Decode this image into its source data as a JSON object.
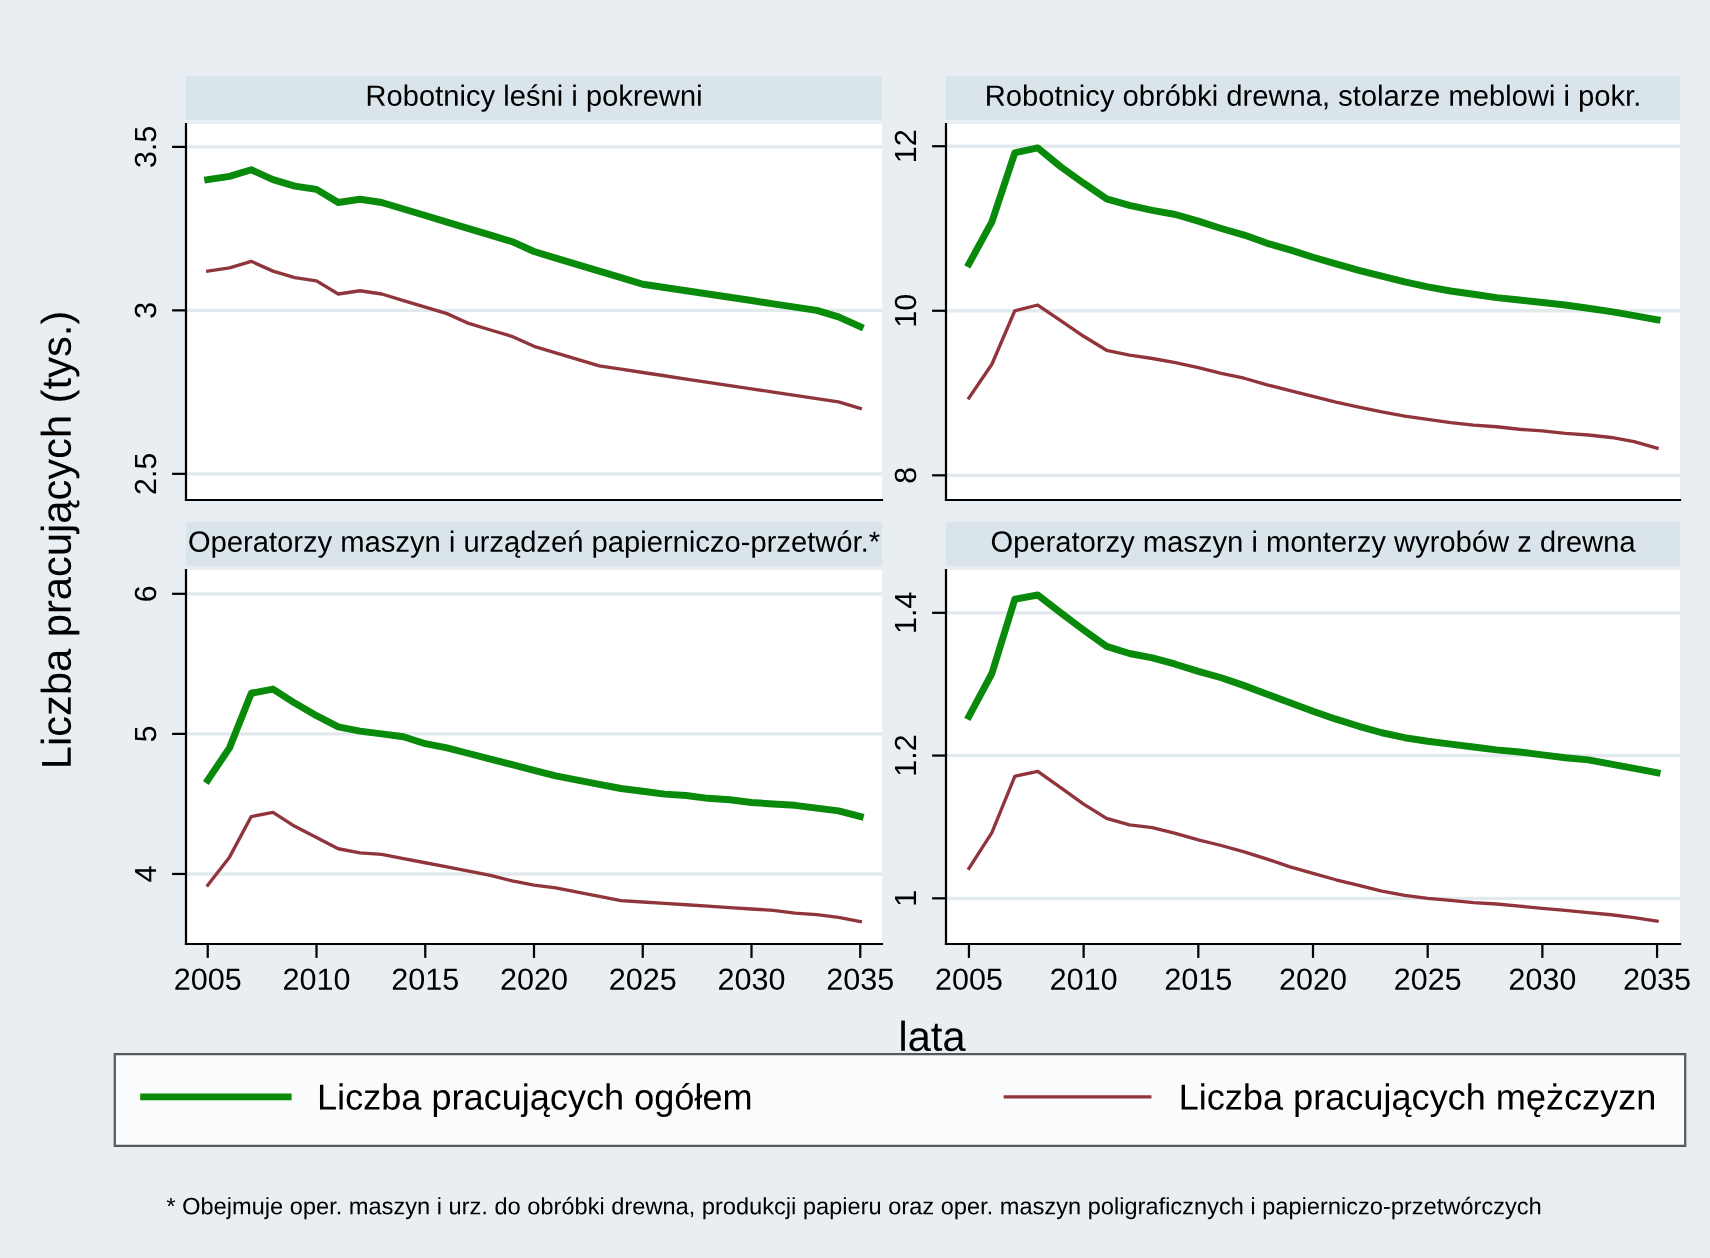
{
  "chart_data": [
    {
      "type": "line",
      "title": "Robotnicy leśni i pokrewni",
      "ylabel": "Liczba pracujących (tys.)",
      "xlabel": "lata",
      "legend": "bottom",
      "grid": "y",
      "tick_labels": "y",
      "annotations": [
        "* Obejmuje oper. maszyn i urz. do obróbki drewna, produkcji papieru oraz oper. maszyn poligraficznych i papierniczo-przetwórczych"
      ],
      "x": [
        2005,
        2006,
        2007,
        2008,
        2009,
        2010,
        2011,
        2012,
        2013,
        2014,
        2015,
        2016,
        2017,
        2018,
        2019,
        2020,
        2021,
        2022,
        2023,
        2024,
        2025,
        2026,
        2027,
        2028,
        2029,
        2030,
        2031,
        2032,
        2033,
        2034,
        2035
      ],
      "xlim": [
        2004,
        2036
      ],
      "xticks": [
        2005,
        2010,
        2015,
        2020,
        2025,
        2030,
        2035
      ],
      "ylim": [
        2.42,
        3.57
      ],
      "yticks": [
        2.5,
        3,
        3.5
      ],
      "series": [
        {
          "name": "Liczba pracujących ogółem",
          "color": "#0a8a0a",
          "values": [
            3.4,
            3.41,
            3.43,
            3.4,
            3.38,
            3.37,
            3.33,
            3.34,
            3.33,
            3.31,
            3.29,
            3.27,
            3.25,
            3.23,
            3.21,
            3.18,
            3.16,
            3.14,
            3.12,
            3.1,
            3.08,
            3.07,
            3.06,
            3.05,
            3.04,
            3.03,
            3.02,
            3.01,
            3.0,
            2.98,
            2.95
          ]
        },
        {
          "name": "Liczba pracujących mężczyzn",
          "color": "#90353b",
          "values": [
            3.12,
            3.13,
            3.15,
            3.12,
            3.1,
            3.09,
            3.05,
            3.06,
            3.05,
            3.03,
            3.01,
            2.99,
            2.96,
            2.94,
            2.92,
            2.89,
            2.87,
            2.85,
            2.83,
            2.82,
            2.81,
            2.8,
            2.79,
            2.78,
            2.77,
            2.76,
            2.75,
            2.74,
            2.73,
            2.72,
            2.7
          ]
        }
      ]
    },
    {
      "type": "line",
      "title": "Robotnicy obróbki drewna, stolarze meblowi i pokr.",
      "grid": "y",
      "tick_labels": "y",
      "x": [
        2005,
        2006,
        2007,
        2008,
        2009,
        2010,
        2011,
        2012,
        2013,
        2014,
        2015,
        2016,
        2017,
        2018,
        2019,
        2020,
        2021,
        2022,
        2023,
        2024,
        2025,
        2026,
        2027,
        2028,
        2029,
        2030,
        2031,
        2032,
        2033,
        2034,
        2035
      ],
      "xlim": [
        2004,
        2036
      ],
      "xticks": [
        2005,
        2010,
        2015,
        2020,
        2025,
        2030,
        2035
      ],
      "ylim": [
        7.7,
        12.27
      ],
      "yticks": [
        8,
        10,
        12
      ],
      "series": [
        {
          "color": "#0a8a0a",
          "values": [
            10.57,
            11.08,
            11.92,
            11.98,
            11.75,
            11.55,
            11.36,
            11.28,
            11.22,
            11.17,
            11.09,
            11.0,
            10.92,
            10.82,
            10.74,
            10.65,
            10.57,
            10.49,
            10.42,
            10.35,
            10.29,
            10.24,
            10.2,
            10.16,
            10.13,
            10.1,
            10.07,
            10.03,
            9.99,
            9.94,
            9.89
          ]
        },
        {
          "color": "#90353b",
          "values": [
            8.94,
            9.35,
            10.0,
            10.07,
            9.88,
            9.69,
            9.52,
            9.46,
            9.42,
            9.37,
            9.31,
            9.24,
            9.18,
            9.1,
            9.03,
            8.96,
            8.89,
            8.83,
            8.77,
            8.72,
            8.68,
            8.64,
            8.61,
            8.59,
            8.56,
            8.54,
            8.51,
            8.49,
            8.46,
            8.41,
            8.33
          ]
        }
      ]
    },
    {
      "type": "line",
      "title": "Operatorzy maszyn i urządzeń papierniczo-przetwór.*",
      "grid": "y",
      "x": [
        2005,
        2006,
        2007,
        2008,
        2009,
        2010,
        2011,
        2012,
        2013,
        2014,
        2015,
        2016,
        2017,
        2018,
        2019,
        2020,
        2021,
        2022,
        2023,
        2024,
        2025,
        2026,
        2027,
        2028,
        2029,
        2030,
        2031,
        2032,
        2033,
        2034,
        2035
      ],
      "xlim": [
        2004,
        2036
      ],
      "xticks": [
        2005,
        2010,
        2015,
        2020,
        2025,
        2030,
        2035
      ],
      "ylim": [
        3.5,
        6.17
      ],
      "yticks": [
        4,
        5,
        6
      ],
      "series": [
        {
          "color": "#0a8a0a",
          "values": [
            4.67,
            4.9,
            5.29,
            5.32,
            5.22,
            5.13,
            5.05,
            5.02,
            5.0,
            4.98,
            4.93,
            4.9,
            4.86,
            4.82,
            4.78,
            4.74,
            4.7,
            4.67,
            4.64,
            4.61,
            4.59,
            4.57,
            4.56,
            4.54,
            4.53,
            4.51,
            4.5,
            4.49,
            4.47,
            4.45,
            4.41
          ]
        },
        {
          "color": "#90353b",
          "values": [
            3.92,
            4.12,
            4.41,
            4.44,
            4.34,
            4.26,
            4.18,
            4.15,
            4.14,
            4.11,
            4.08,
            4.05,
            4.02,
            3.99,
            3.95,
            3.92,
            3.9,
            3.87,
            3.84,
            3.81,
            3.8,
            3.79,
            3.78,
            3.77,
            3.76,
            3.75,
            3.74,
            3.72,
            3.71,
            3.69,
            3.66
          ]
        }
      ]
    },
    {
      "type": "line",
      "title": "Operatorzy maszyn i monterzy wyrobów z drewna",
      "grid": "y",
      "x": [
        2005,
        2006,
        2007,
        2008,
        2009,
        2010,
        2011,
        2012,
        2013,
        2014,
        2015,
        2016,
        2017,
        2018,
        2019,
        2020,
        2021,
        2022,
        2023,
        2024,
        2025,
        2026,
        2027,
        2028,
        2029,
        2030,
        2031,
        2032,
        2033,
        2034,
        2035
      ],
      "xlim": [
        2004,
        2036
      ],
      "xticks": [
        2005,
        2010,
        2015,
        2020,
        2025,
        2030,
        2035
      ],
      "ylim": [
        0.936,
        1.46
      ],
      "yticks": [
        1,
        1.2,
        1.4
      ],
      "series": [
        {
          "color": "#0a8a0a",
          "values": [
            1.255,
            1.315,
            1.419,
            1.425,
            1.4,
            1.376,
            1.353,
            1.343,
            1.337,
            1.328,
            1.318,
            1.309,
            1.298,
            1.286,
            1.274,
            1.262,
            1.251,
            1.241,
            1.232,
            1.225,
            1.22,
            1.216,
            1.212,
            1.208,
            1.205,
            1.201,
            1.197,
            1.194,
            1.188,
            1.182,
            1.176
          ]
        },
        {
          "color": "#90353b",
          "values": [
            1.042,
            1.092,
            1.171,
            1.178,
            1.155,
            1.132,
            1.112,
            1.103,
            1.099,
            1.091,
            1.082,
            1.074,
            1.065,
            1.055,
            1.044,
            1.035,
            1.026,
            1.018,
            1.01,
            1.004,
            1.0,
            0.997,
            0.994,
            0.992,
            0.989,
            0.986,
            0.983,
            0.98,
            0.977,
            0.973,
            0.968
          ]
        }
      ]
    }
  ]
}
